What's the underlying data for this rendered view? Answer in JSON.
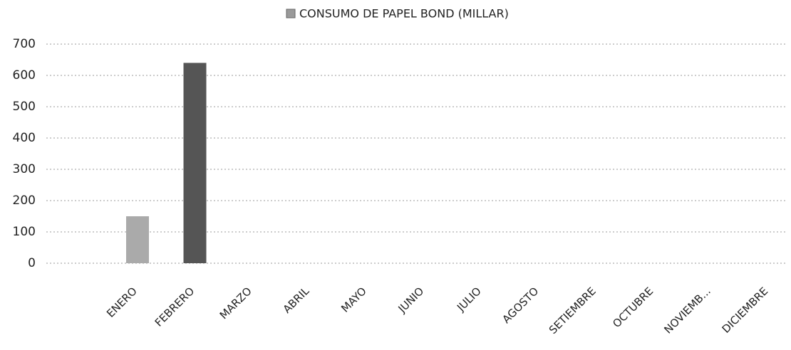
{
  "chart_data": {
    "type": "bar",
    "series": [
      {
        "name": "CONSUMO DE PAPEL BOND (MILLAR)",
        "color": "#9a9a9a",
        "values": [
          150,
          640,
          null,
          null,
          null,
          null,
          null,
          null,
          null,
          null,
          null,
          null
        ]
      }
    ],
    "categories": [
      "ENERO",
      "FEBRERO",
      "MARZO",
      "ABRIL",
      "MAYO",
      "JUNIO",
      "JULIO",
      "AGOSTO",
      "SETIEMBRE",
      "OCTUBRE",
      "NOVIEMB...",
      "DICIEMBRE"
    ],
    "colors": [
      "#aaaaaa",
      "#555555"
    ],
    "ylim": [
      0,
      700
    ],
    "yticks": [
      0,
      100,
      200,
      300,
      400,
      500,
      600,
      700
    ],
    "grid": true
  }
}
